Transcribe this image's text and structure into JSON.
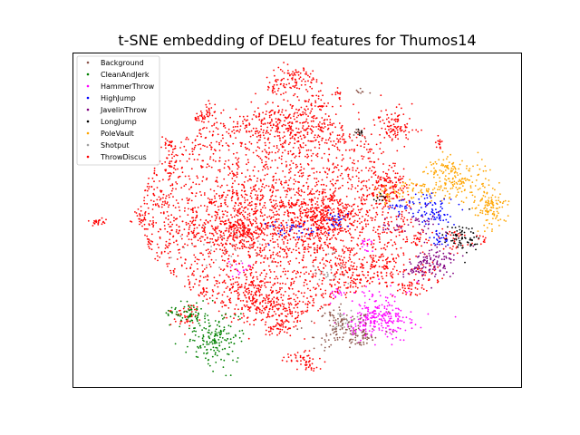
{
  "chart_data": {
    "type": "scatter",
    "title": "t-SNE embedding of DELU features for Thumos14",
    "xlabel": "",
    "ylabel": "",
    "x_ticks": "none",
    "y_ticks": "none",
    "grid": false,
    "legend_position": "top-left",
    "series": [
      {
        "name": "Background",
        "color": "#8c564b"
      },
      {
        "name": "CleanAndJerk",
        "color": "#008000"
      },
      {
        "name": "HammerThrow",
        "color": "#ff00ff"
      },
      {
        "name": "HighJump",
        "color": "#0000ff"
      },
      {
        "name": "JavelinThrow",
        "color": "#800080"
      },
      {
        "name": "LongJump",
        "color": "#000000"
      },
      {
        "name": "PoleVault",
        "color": "#ffa500"
      },
      {
        "name": "Shotput",
        "color": "#a0a0a0"
      },
      {
        "name": "ThrowDiscus",
        "color": "#ff0000"
      }
    ]
  }
}
